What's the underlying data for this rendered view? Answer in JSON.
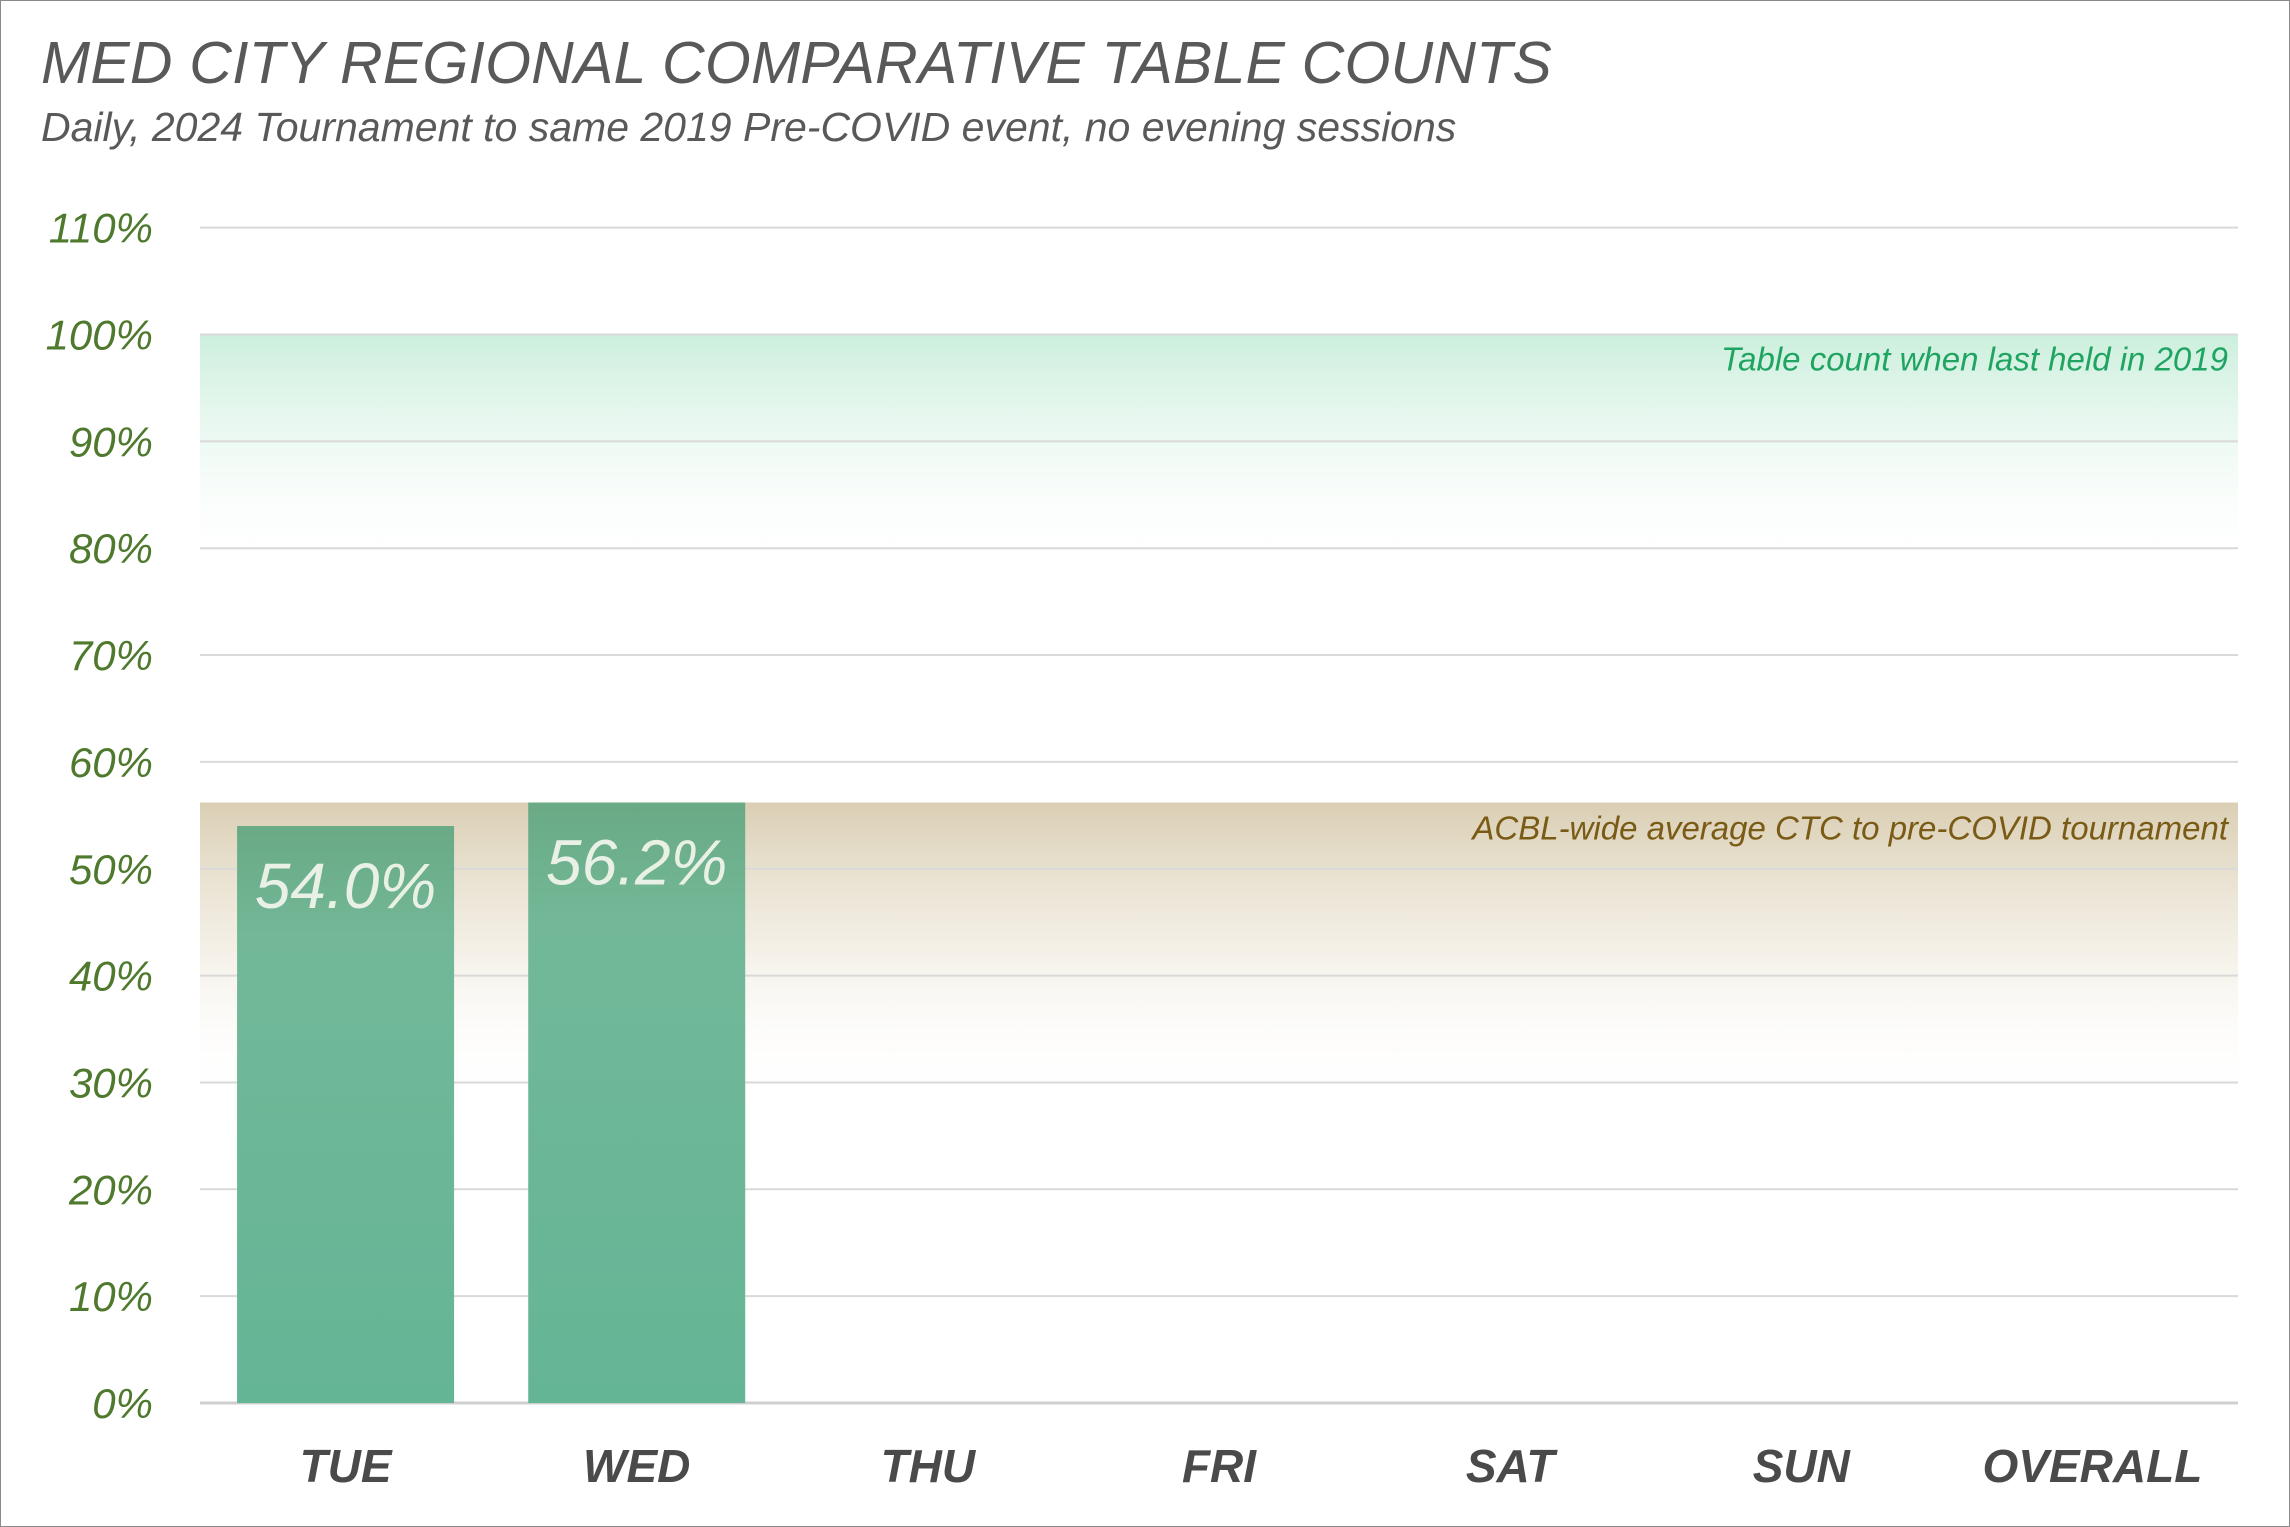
{
  "chart_data": {
    "type": "bar",
    "title": "MED CITY REGIONAL COMPARATIVE TABLE COUNTS",
    "subtitle": "Daily, 2024 Tournament to same 2019 Pre-COVID event, no evening sessions",
    "categories": [
      "TUE",
      "WED",
      "THU",
      "FRI",
      "SAT",
      "SUN",
      "OVERALL"
    ],
    "values": [
      54.0,
      56.2,
      null,
      null,
      null,
      null,
      null
    ],
    "data_labels": [
      "54.0%",
      "56.2%",
      "",
      "",
      "",
      "",
      ""
    ],
    "ylim": [
      0,
      110
    ],
    "y_ticks": [
      "0%",
      "10%",
      "20%",
      "30%",
      "40%",
      "50%",
      "60%",
      "70%",
      "80%",
      "90%",
      "100%",
      "110%"
    ],
    "grid": true,
    "bar_color": "#64b596",
    "reference_bands": [
      {
        "label": "Table count when last held in 2019",
        "value": 100,
        "color": "#1fa462"
      },
      {
        "label": "ACBL-wide average CTC to pre-COVID tournament",
        "value": 56.2,
        "color": "#7a5b16"
      }
    ]
  }
}
